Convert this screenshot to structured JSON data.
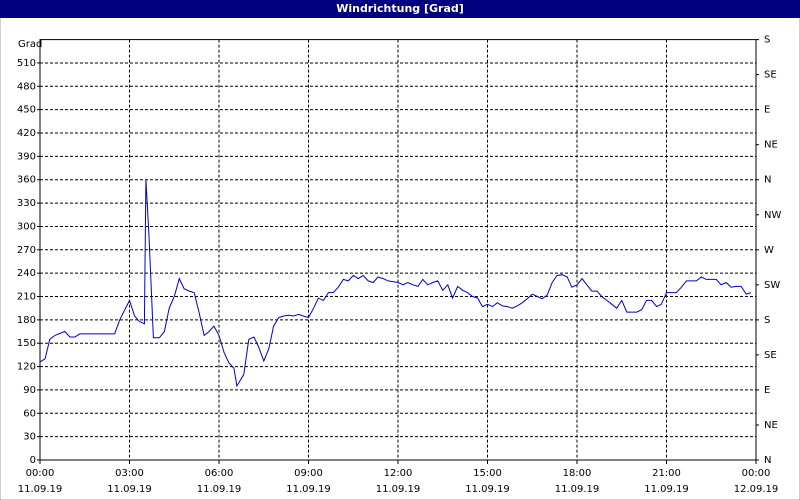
{
  "chart_data": {
    "type": "line",
    "title": "Windrichtung [Grad]",
    "y_label": "Grad",
    "x": [
      0,
      0.17,
      0.33,
      0.5,
      0.83,
      1.0,
      1.17,
      1.33,
      2.0,
      2.5,
      2.67,
      3.0,
      3.17,
      3.33,
      3.5,
      3.55,
      3.65,
      3.8,
      4.0,
      4.17,
      4.33,
      4.5,
      4.67,
      4.83,
      5.0,
      5.17,
      5.33,
      5.5,
      5.67,
      5.83,
      6.0,
      6.17,
      6.33,
      6.5,
      6.6,
      6.83,
      7.0,
      7.17,
      7.33,
      7.5,
      7.67,
      7.83,
      8.0,
      8.17,
      8.33,
      8.5,
      8.67,
      8.83,
      9.0,
      9.17,
      9.33,
      9.5,
      9.67,
      9.83,
      10.0,
      10.17,
      10.33,
      10.5,
      10.67,
      10.83,
      11.0,
      11.17,
      11.33,
      11.5,
      11.67,
      12.0,
      12.17,
      12.33,
      12.5,
      12.67,
      12.83,
      13.0,
      13.17,
      13.33,
      13.5,
      13.67,
      13.83,
      14.0,
      14.17,
      14.33,
      14.5,
      14.67,
      14.83,
      15.0,
      15.17,
      15.33,
      15.5,
      15.67,
      15.83,
      16.0,
      16.17,
      16.33,
      16.5,
      16.67,
      16.83,
      17.0,
      17.17,
      17.33,
      17.5,
      17.67,
      17.83,
      18.0,
      18.17,
      18.33,
      18.5,
      18.67,
      18.83,
      19.0,
      19.17,
      19.33,
      19.5,
      19.67,
      19.83,
      20.0,
      20.17,
      20.33,
      20.5,
      20.67,
      20.83,
      21.0,
      21.17,
      21.33,
      21.5,
      21.67,
      22.0,
      22.17,
      22.33,
      22.67,
      22.83,
      23.0,
      23.17,
      23.33,
      23.5,
      23.67,
      23.83
    ],
    "series": [
      {
        "name": "Windrichtung",
        "color": "#0000cc",
        "values": [
          126,
          130,
          155,
          160,
          165,
          158,
          158,
          162,
          162,
          162,
          180,
          205,
          185,
          178,
          175,
          360,
          290,
          157,
          157,
          165,
          195,
          210,
          233,
          220,
          217,
          215,
          190,
          160,
          165,
          172,
          160,
          138,
          125,
          118,
          95,
          110,
          155,
          158,
          145,
          127,
          143,
          172,
          183,
          185,
          186,
          185,
          187,
          185,
          183,
          195,
          208,
          205,
          215,
          215,
          222,
          232,
          230,
          237,
          233,
          237,
          230,
          228,
          235,
          233,
          230,
          228,
          225,
          228,
          225,
          223,
          232,
          225,
          228,
          230,
          218,
          225,
          208,
          223,
          218,
          215,
          210,
          208,
          197,
          200,
          197,
          202,
          198,
          197,
          195,
          198,
          202,
          207,
          213,
          210,
          207,
          212,
          228,
          237,
          238,
          235,
          222,
          225,
          233,
          225,
          217,
          217,
          210,
          205,
          200,
          195,
          205,
          190,
          190,
          190,
          193,
          205,
          205,
          197,
          200,
          215,
          215,
          215,
          222,
          230,
          230,
          235,
          232,
          232,
          225,
          228,
          222,
          223,
          223,
          213,
          215
        ]
      }
    ],
    "xlim": [
      0,
      24
    ],
    "ylim": [
      0,
      540
    ],
    "xticks": [
      {
        "value": 0,
        "label": "00:00"
      },
      {
        "value": 3,
        "label": "03:00"
      },
      {
        "value": 6,
        "label": "06:00"
      },
      {
        "value": 9,
        "label": "09:00"
      },
      {
        "value": 12,
        "label": "12:00"
      },
      {
        "value": 15,
        "label": "15:00"
      },
      {
        "value": 18,
        "label": "18:00"
      },
      {
        "value": 21,
        "label": "21:00"
      },
      {
        "value": 24,
        "label": "00:00"
      }
    ],
    "xtick_dates": [
      "11.09.19",
      "11.09.19",
      "11.09.19",
      "11.09.19",
      "11.09.19",
      "11.09.19",
      "11.09.19",
      "11.09.19",
      "12.09.19"
    ],
    "yticks": [
      0,
      30,
      60,
      90,
      120,
      150,
      180,
      210,
      240,
      270,
      300,
      330,
      360,
      390,
      420,
      450,
      480,
      510
    ],
    "y2lim": [
      0,
      540
    ],
    "y2ticks": [
      {
        "value": 0,
        "label": "N"
      },
      {
        "value": 45,
        "label": "NE"
      },
      {
        "value": 90,
        "label": "E"
      },
      {
        "value": 135,
        "label": "SE"
      },
      {
        "value": 180,
        "label": "S"
      },
      {
        "value": 225,
        "label": "SW"
      },
      {
        "value": 270,
        "label": "W"
      },
      {
        "value": 315,
        "label": "NW"
      },
      {
        "value": 360,
        "label": "N"
      },
      {
        "value": 405,
        "label": "NE"
      },
      {
        "value": 450,
        "label": "E"
      },
      {
        "value": 495,
        "label": "SE"
      },
      {
        "value": 540,
        "label": "S"
      }
    ],
    "grid": true
  }
}
